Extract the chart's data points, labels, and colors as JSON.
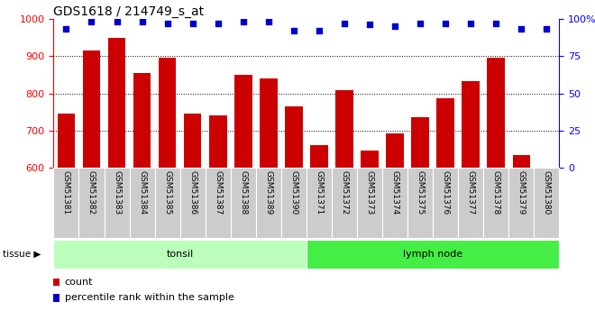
{
  "title": "GDS1618 / 214749_s_at",
  "categories": [
    "GSM51381",
    "GSM51382",
    "GSM51383",
    "GSM51384",
    "GSM51385",
    "GSM51386",
    "GSM51387",
    "GSM51388",
    "GSM51389",
    "GSM51390",
    "GSM51371",
    "GSM51372",
    "GSM51373",
    "GSM51374",
    "GSM51375",
    "GSM51376",
    "GSM51377",
    "GSM51378",
    "GSM51379",
    "GSM51380"
  ],
  "counts": [
    745,
    915,
    948,
    854,
    895,
    745,
    741,
    850,
    840,
    765,
    660,
    808,
    646,
    692,
    736,
    787,
    832,
    895,
    635,
    600
  ],
  "percentiles": [
    93,
    98,
    98,
    98,
    97,
    97,
    97,
    98,
    98,
    92,
    92,
    97,
    96,
    95,
    97,
    97,
    97,
    97,
    93,
    93
  ],
  "bar_color": "#cc0000",
  "dot_color": "#0000cc",
  "ylim_left": [
    600,
    1000
  ],
  "ylim_right": [
    0,
    100
  ],
  "yticks_left": [
    600,
    700,
    800,
    900,
    1000
  ],
  "yticks_right": [
    0,
    25,
    50,
    75,
    100
  ],
  "grid_yticks": [
    700,
    800,
    900
  ],
  "tissue_groups": [
    {
      "label": "tonsil",
      "start": 0,
      "end": 9,
      "color": "#bbffbb"
    },
    {
      "label": "lymph node",
      "start": 10,
      "end": 19,
      "color": "#44ee44"
    }
  ],
  "tissue_label": "tissue",
  "legend_count_label": "count",
  "legend_pct_label": "percentile rank within the sample",
  "background_color": "#ffffff",
  "tick_bg_color": "#cccccc",
  "title_fontsize": 10,
  "tick_fontsize": 8,
  "label_fontsize": 8
}
